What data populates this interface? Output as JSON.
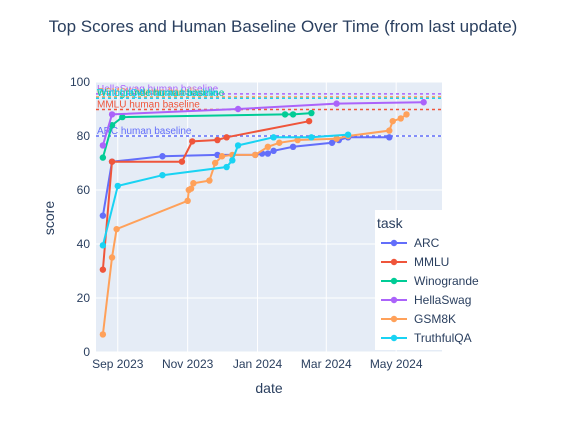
{
  "chart_data": {
    "type": "line",
    "title": "Top Scores and Human Baseline Over Time (from last update)",
    "xlabel": "date",
    "ylabel": "score",
    "xlim": [
      "2023-08-13",
      "2024-06-10"
    ],
    "ylim": [
      0,
      100
    ],
    "x_ticks": [
      {
        "date": "2023-09-01",
        "label": "Sep 2023"
      },
      {
        "date": "2023-11-01",
        "label": "Nov 2023"
      },
      {
        "date": "2024-01-01",
        "label": "Jan 2024"
      },
      {
        "date": "2024-03-01",
        "label": "Mar 2024"
      },
      {
        "date": "2024-05-01",
        "label": "May 2024"
      }
    ],
    "y_ticks": [
      0,
      20,
      40,
      60,
      80,
      100
    ],
    "grid": true,
    "legend": {
      "title": "task",
      "position": "right"
    },
    "series": [
      {
        "name": "ARC",
        "color": "#636efa",
        "points": [
          [
            "2023-08-19",
            50.5
          ],
          [
            "2023-08-27",
            70.5
          ],
          [
            "2023-10-10",
            72.5
          ],
          [
            "2023-11-27",
            73.0
          ],
          [
            "2023-12-30",
            73.0
          ],
          [
            "2024-01-05",
            73.5
          ],
          [
            "2024-01-10",
            73.5
          ],
          [
            "2024-01-15",
            74.5
          ],
          [
            "2024-02-01",
            76.0
          ],
          [
            "2024-03-06",
            77.5
          ],
          [
            "2024-03-12",
            78.5
          ],
          [
            "2024-03-20",
            79.5
          ],
          [
            "2024-04-25",
            79.5
          ]
        ]
      },
      {
        "name": "MMLU",
        "color": "#ef553b",
        "points": [
          [
            "2023-08-19",
            30.5
          ],
          [
            "2023-08-27",
            70.5
          ],
          [
            "2023-10-27",
            70.5
          ],
          [
            "2023-11-05",
            78.0
          ],
          [
            "2023-11-27",
            78.5
          ],
          [
            "2023-12-05",
            79.5
          ],
          [
            "2024-02-15",
            85.5
          ]
        ]
      },
      {
        "name": "Winogrande",
        "color": "#00cc96",
        "points": [
          [
            "2023-08-19",
            72.0
          ],
          [
            "2023-08-27",
            84.0
          ],
          [
            "2023-09-05",
            87.0
          ],
          [
            "2024-01-25",
            88.0
          ],
          [
            "2024-02-01",
            88.0
          ],
          [
            "2024-02-17",
            88.5
          ]
        ]
      },
      {
        "name": "HellaSwag",
        "color": "#ab63fa",
        "points": [
          [
            "2023-08-19",
            76.5
          ],
          [
            "2023-08-27",
            88.0
          ],
          [
            "2023-12-15",
            90.0
          ],
          [
            "2024-03-10",
            92.0
          ],
          [
            "2024-05-25",
            92.5
          ]
        ]
      },
      {
        "name": "GSM8K",
        "color": "#ffa15a",
        "points": [
          [
            "2023-08-19",
            6.5
          ],
          [
            "2023-08-27",
            35.0
          ],
          [
            "2023-08-31",
            45.5
          ],
          [
            "2023-11-01",
            56.0
          ],
          [
            "2023-11-02",
            60.0
          ],
          [
            "2023-11-04",
            60.5
          ],
          [
            "2023-11-06",
            62.5
          ],
          [
            "2023-11-20",
            63.5
          ],
          [
            "2023-11-25",
            70.0
          ],
          [
            "2023-12-01",
            72.5
          ],
          [
            "2023-12-10",
            73.0
          ],
          [
            "2023-12-30",
            73.0
          ],
          [
            "2024-01-10",
            76.0
          ],
          [
            "2024-01-20",
            77.5
          ],
          [
            "2024-02-05",
            78.5
          ],
          [
            "2024-03-10",
            79.0
          ],
          [
            "2024-03-20",
            80.0
          ],
          [
            "2024-04-25",
            82.0
          ],
          [
            "2024-04-28",
            85.5
          ],
          [
            "2024-05-05",
            86.5
          ],
          [
            "2024-05-10",
            88.0
          ]
        ]
      },
      {
        "name": "TruthfulQA",
        "color": "#19d3f3",
        "points": [
          [
            "2023-08-19",
            39.5
          ],
          [
            "2023-09-01",
            61.5
          ],
          [
            "2023-10-10",
            65.5
          ],
          [
            "2023-12-05",
            68.5
          ],
          [
            "2023-12-10",
            71.0
          ],
          [
            "2023-12-15",
            76.5
          ],
          [
            "2024-01-15",
            79.5
          ],
          [
            "2024-02-17",
            79.5
          ],
          [
            "2024-03-20",
            80.5
          ]
        ]
      }
    ],
    "baselines": [
      {
        "label": "HellaSwag human baseline",
        "value": 95.6,
        "color": "#ab63fa"
      },
      {
        "label": "GSM8K human baseline",
        "value": 94.5,
        "color": "#ffa15a"
      },
      {
        "label": "Winogrande human baseline",
        "value": 94.0,
        "color": "#00cc96"
      },
      {
        "label": "TruthfulQA human baseline",
        "value": 94.0,
        "color": "#19d3f3"
      },
      {
        "label": "MMLU human baseline",
        "value": 89.8,
        "color": "#ef553b"
      },
      {
        "label": "ARC human baseline",
        "value": 80.0,
        "color": "#636efa"
      }
    ]
  }
}
